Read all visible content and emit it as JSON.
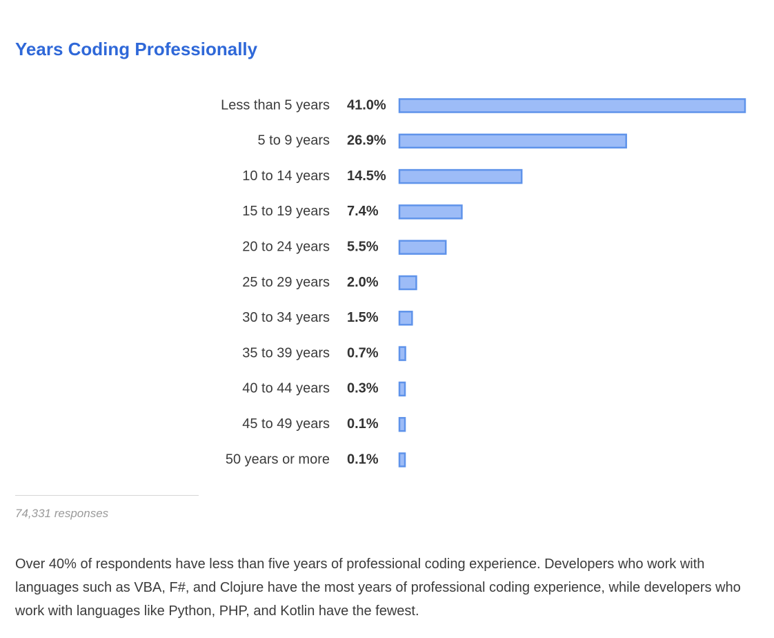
{
  "chart_data": {
    "type": "bar",
    "orientation": "horizontal",
    "title": "Years Coding Professionally",
    "categories": [
      "Less than 5 years",
      "5 to 9 years",
      "10 to 14 years",
      "15 to 19 years",
      "20 to 24 years",
      "25 to 29 years",
      "30 to 34 years",
      "35 to 39 years",
      "40 to 44 years",
      "45 to 49 years",
      "50 years or more"
    ],
    "values": [
      41.0,
      26.9,
      14.5,
      7.4,
      5.5,
      2.0,
      1.5,
      0.7,
      0.3,
      0.1,
      0.1
    ],
    "value_labels": [
      "41.0%",
      "26.9%",
      "14.5%",
      "7.4%",
      "5.5%",
      "2.0%",
      "1.5%",
      "0.7%",
      "0.3%",
      "0.1%",
      "0.1%"
    ],
    "unit": "%",
    "xlim": [
      0,
      41.0
    ],
    "grid": false,
    "legend": "none"
  },
  "footer": {
    "responses": "74,331 responses"
  },
  "description": "Over 40% of respondents have less than five years of professional coding experience. Developers who work with languages such as VBA, F#, and Clojure have the most years of professional coding experience, while developers who work with languages like Python, PHP, and Kotlin have the fewest.",
  "colors": {
    "title": "#2f68d8",
    "bar_fill": "#9dbcf7",
    "bar_stroke": "#5f93ea"
  }
}
